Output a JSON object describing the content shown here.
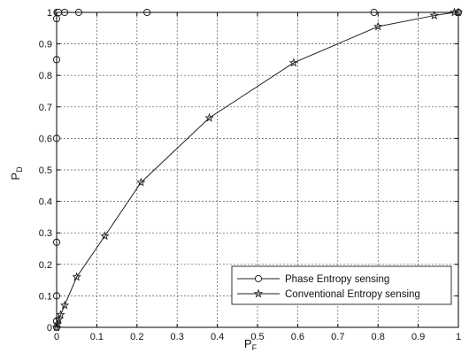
{
  "chart_data": {
    "type": "line",
    "xlabel": "P",
    "xlabel_sub": "F",
    "ylabel": "P",
    "ylabel_sub": "D",
    "xlim": [
      0,
      1
    ],
    "ylim": [
      0,
      1
    ],
    "x_ticks": [
      "0",
      "0.1",
      "0.2",
      "0.3",
      "0.4",
      "0.5",
      "0.6",
      "0.7",
      "0.8",
      "0.9",
      "1"
    ],
    "y_ticks": [
      "0",
      "0.1",
      "0.2",
      "0.3",
      "0.4",
      "0.5",
      "0.6",
      "0.7",
      "0.8",
      "0.9",
      "1"
    ],
    "grid": true,
    "legend_position": "bottom-right",
    "series": [
      {
        "name": "Phase Entropy sensing",
        "marker": "circle",
        "color": "#222222",
        "x": [
          0,
          0,
          0,
          0,
          0,
          0,
          0,
          0.001,
          0.002,
          0.005,
          0.02,
          0.055,
          0.225,
          0.79,
          1.0
        ],
        "y": [
          0,
          0.02,
          0.1,
          0.27,
          0.6,
          0.85,
          0.98,
          1.0,
          1.0,
          1.0,
          1.0,
          1.0,
          1.0,
          1.0,
          1.0
        ]
      },
      {
        "name": "Conventional Entropy sensing",
        "marker": "star",
        "color": "#222222",
        "x": [
          0,
          0.002,
          0.005,
          0.01,
          0.02,
          0.05,
          0.12,
          0.21,
          0.38,
          0.59,
          0.8,
          0.94,
          0.99,
          1.0
        ],
        "y": [
          0,
          0.01,
          0.025,
          0.04,
          0.07,
          0.16,
          0.29,
          0.46,
          0.665,
          0.84,
          0.955,
          0.99,
          1.0,
          1.0
        ]
      }
    ]
  }
}
